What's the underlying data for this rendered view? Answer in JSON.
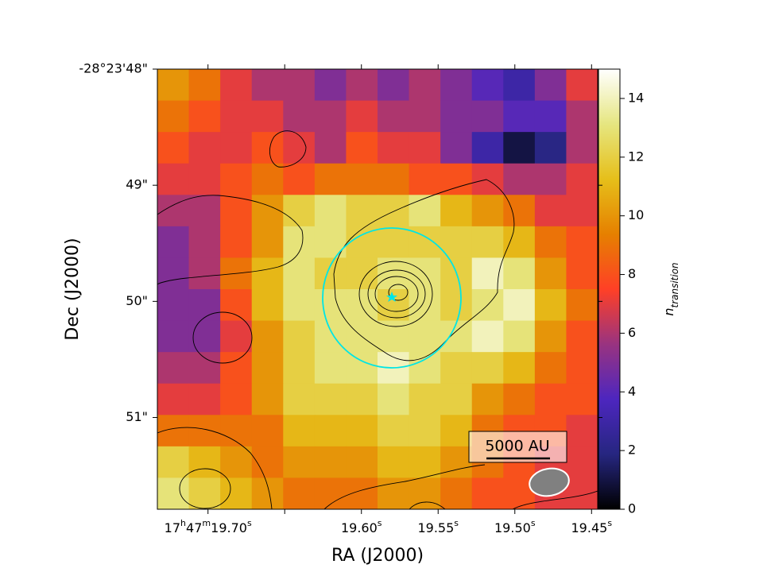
{
  "chart_data": {
    "type": "heatmap",
    "xlabel": "RA (J2000)",
    "ylabel": "Dec (J2000)",
    "colorbar_label": {
      "base": "n",
      "sub": "transition"
    },
    "annotation": "5000 AU",
    "xlim": [
      19.733,
      19.446
    ],
    "ylim": [
      51.79,
      48
    ],
    "xticks": [
      {
        "value": 19.7,
        "label": "17h47m19.70s"
      },
      {
        "value": 19.65,
        "label": null
      },
      {
        "value": 19.6,
        "label": "19.60s"
      },
      {
        "value": 19.55,
        "label": "19.55s"
      },
      {
        "value": 19.5,
        "label": "19.50s"
      },
      {
        "value": 19.45,
        "label": "19.45s"
      }
    ],
    "yticks": [
      {
        "value": 48,
        "label": "-28°23'48\""
      },
      {
        "value": 49,
        "label": "49\""
      },
      {
        "value": 50,
        "label": "50\""
      },
      {
        "value": 51,
        "label": "51\""
      }
    ],
    "clim": [
      0,
      15
    ],
    "cticks": [
      0,
      2,
      4,
      6,
      8,
      10,
      12,
      14
    ],
    "colormap": [
      "#000000",
      "#262680",
      "#4d26bf",
      "#993380",
      "#ff4026",
      "#e68000",
      "#e6bf1a",
      "#e6e680",
      "#ffffff"
    ],
    "values": [
      [
        10,
        9,
        7,
        6,
        6,
        5,
        6,
        5,
        6,
        5,
        4,
        3,
        5,
        7
      ],
      [
        9,
        8,
        7,
        7,
        6,
        6,
        7,
        6,
        6,
        5,
        5,
        4,
        4,
        6
      ],
      [
        8,
        7,
        7,
        8,
        7,
        6,
        8,
        7,
        7,
        5,
        3,
        1,
        2,
        6
      ],
      [
        7,
        7,
        8,
        9,
        8,
        9,
        9,
        9,
        8,
        8,
        7,
        6,
        6,
        7
      ],
      [
        6,
        6,
        8,
        10,
        12,
        13,
        12,
        12,
        13,
        11,
        10,
        9,
        7,
        7
      ],
      [
        5,
        6,
        8,
        10,
        13,
        13,
        12,
        12,
        12,
        12,
        12,
        11,
        9,
        8
      ],
      [
        5,
        6,
        9,
        11,
        13,
        12,
        12,
        13,
        13,
        12,
        14,
        13,
        10,
        8
      ],
      [
        5,
        5,
        8,
        11,
        13,
        13,
        13,
        12,
        13,
        12,
        13,
        14,
        11,
        9
      ],
      [
        5,
        5,
        7,
        10,
        12,
        13,
        13,
        13,
        13,
        13,
        14,
        13,
        10,
        8
      ],
      [
        6,
        6,
        8,
        10,
        12,
        13,
        13,
        14,
        13,
        12,
        12,
        11,
        9,
        8
      ],
      [
        7,
        7,
        8,
        10,
        12,
        12,
        12,
        13,
        12,
        12,
        10,
        9,
        8,
        8
      ],
      [
        9,
        9,
        9,
        9,
        11,
        11,
        11,
        12,
        12,
        11,
        9,
        8,
        8,
        7
      ],
      [
        12,
        11,
        10,
        9,
        10,
        10,
        10,
        11,
        11,
        10,
        9,
        8,
        7,
        7
      ],
      [
        13,
        12,
        11,
        10,
        9,
        9,
        9,
        10,
        10,
        9,
        8,
        8,
        7,
        7
      ]
    ]
  }
}
